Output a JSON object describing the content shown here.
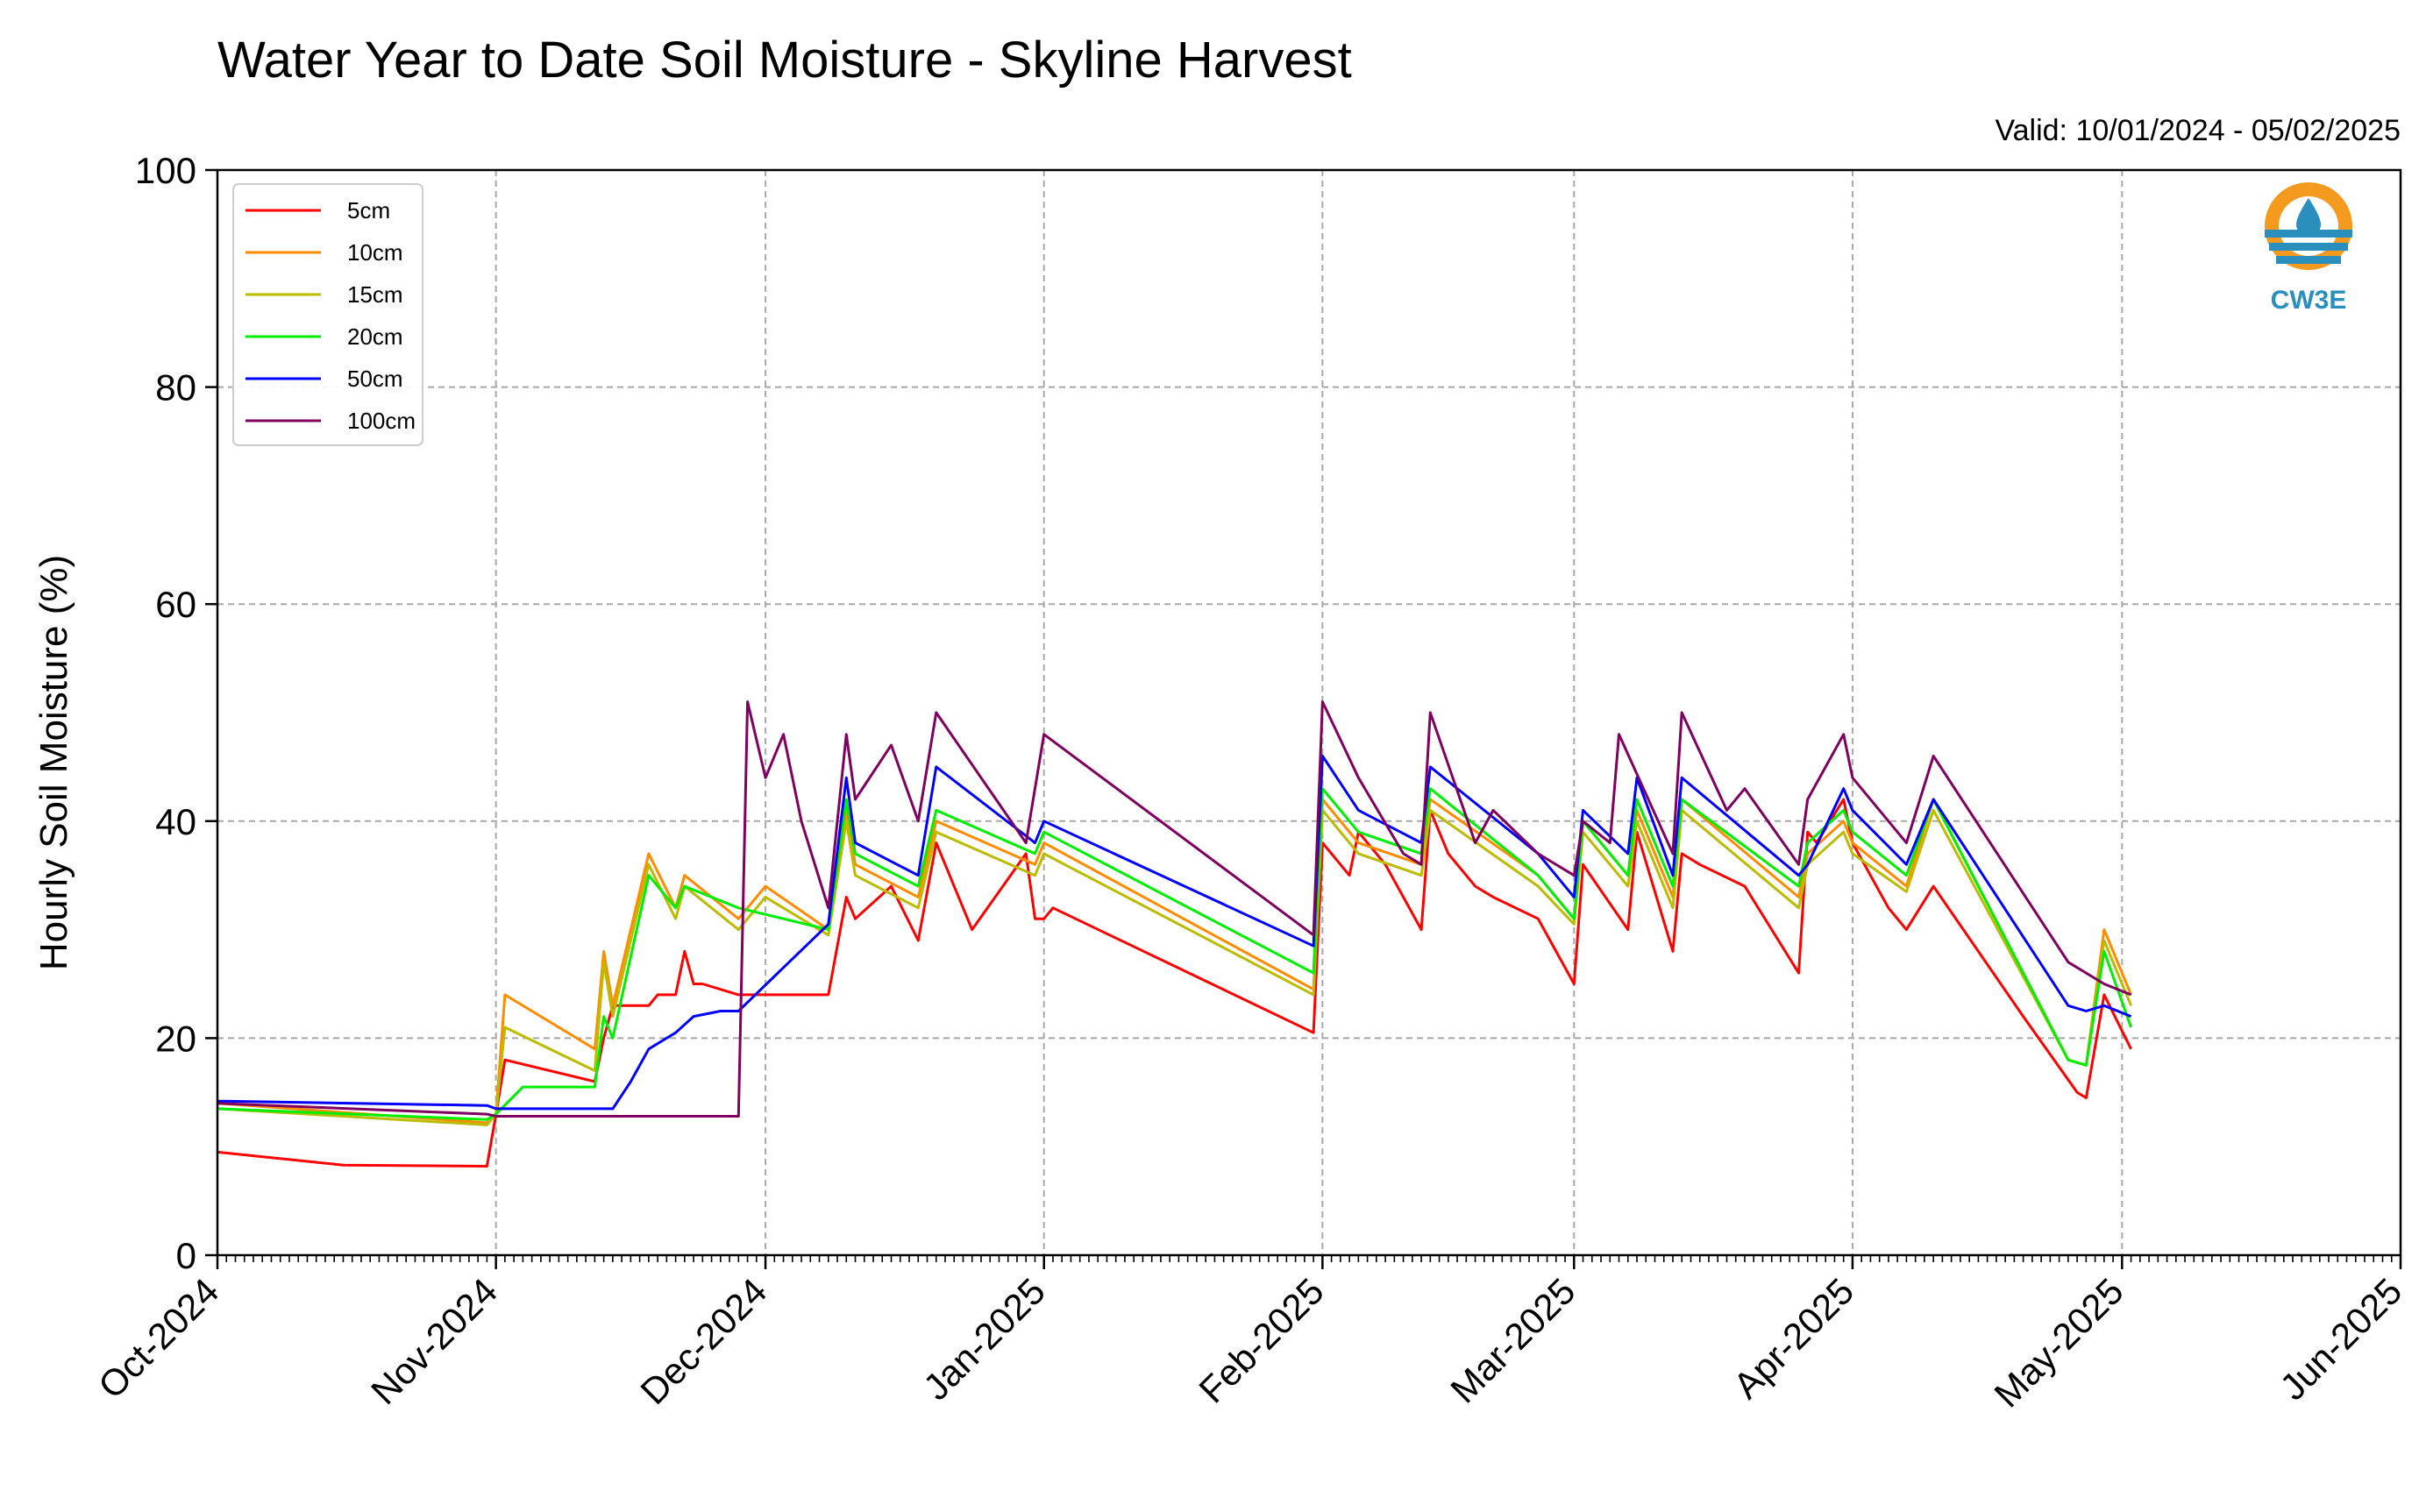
{
  "chart_data": {
    "type": "line",
    "title": "Water Year to Date Soil Moisture - Skyline Harvest",
    "subtitle": "Valid: 10/01/2024 - 05/02/2025",
    "xlabel": "",
    "ylabel": "Hourly Soil Moisture (%)",
    "xlim": [
      "2024-10-01",
      "2025-06-01"
    ],
    "ylim": [
      0,
      100
    ],
    "yticks": [
      0,
      20,
      40,
      60,
      80,
      100
    ],
    "ytick_labels": [
      "0",
      "20",
      "40",
      "60",
      "80",
      "100"
    ],
    "xtick_labels": [
      "Oct-2024",
      "Nov-2024",
      "Dec-2024",
      "Jan-2025",
      "Feb-2025",
      "Mar-2025",
      "Apr-2025",
      "May-2025",
      "Jun-2025"
    ],
    "xtick_dates": [
      "2024-10-01",
      "2024-11-01",
      "2024-12-01",
      "2025-01-01",
      "2025-02-01",
      "2025-03-01",
      "2025-04-01",
      "2025-05-01",
      "2025-06-01"
    ],
    "grid": true,
    "legend_position": "top-left",
    "logo_text": "CW3E",
    "logo_colors": {
      "sun": "#f39a1f",
      "water": "#2a8fbd"
    },
    "series": [
      {
        "name": "5cm",
        "color": "#ff0000",
        "x": [
          "2024-10-01",
          "2024-10-15",
          "2024-10-31",
          "2024-11-01",
          "2024-11-02",
          "2024-11-12",
          "2024-11-13",
          "2024-11-14",
          "2024-11-18",
          "2024-11-19",
          "2024-11-21",
          "2024-11-22",
          "2024-11-23",
          "2024-11-24",
          "2024-11-28",
          "2024-12-08",
          "2024-12-10",
          "2024-12-11",
          "2024-12-15",
          "2024-12-18",
          "2024-12-20",
          "2024-12-24",
          "2024-12-30",
          "2024-12-31",
          "2025-01-01",
          "2025-01-02",
          "2025-01-31",
          "2025-02-01",
          "2025-02-04",
          "2025-02-05",
          "2025-02-08",
          "2025-02-12",
          "2025-02-13",
          "2025-02-15",
          "2025-02-18",
          "2025-02-20",
          "2025-02-25",
          "2025-03-01",
          "2025-03-02",
          "2025-03-07",
          "2025-03-08",
          "2025-03-12",
          "2025-03-13",
          "2025-03-15",
          "2025-03-20",
          "2025-03-26",
          "2025-03-27",
          "2025-03-28",
          "2025-03-31",
          "2025-04-01",
          "2025-04-05",
          "2025-04-07",
          "2025-04-10",
          "2025-04-20",
          "2025-04-26",
          "2025-04-27",
          "2025-04-29",
          "2025-05-02"
        ],
        "y": [
          9.5,
          8.3,
          8.2,
          13,
          18,
          16,
          20,
          23,
          23,
          24,
          24,
          28,
          25,
          25,
          24,
          24,
          33,
          31,
          34,
          29,
          38,
          30,
          37,
          31,
          31,
          32,
          20.5,
          38,
          35,
          39,
          36,
          30,
          41,
          37,
          34,
          33,
          31,
          25,
          36,
          30,
          39,
          28,
          37,
          36,
          34,
          26,
          39,
          38,
          42,
          38,
          32,
          30,
          34,
          22,
          15,
          14.5,
          24,
          19
        ]
      },
      {
        "name": "10cm",
        "color": "#ff8c00",
        "x": [
          "2024-10-01",
          "2024-10-31",
          "2024-11-01",
          "2024-11-02",
          "2024-11-12",
          "2024-11-13",
          "2024-11-14",
          "2024-11-18",
          "2024-11-21",
          "2024-11-22",
          "2024-11-28",
          "2024-12-01",
          "2024-12-08",
          "2024-12-10",
          "2024-12-11",
          "2024-12-18",
          "2024-12-20",
          "2024-12-31",
          "2025-01-01",
          "2025-01-31",
          "2025-02-01",
          "2025-02-05",
          "2025-02-12",
          "2025-02-13",
          "2025-02-25",
          "2025-03-01",
          "2025-03-02",
          "2025-03-07",
          "2025-03-08",
          "2025-03-12",
          "2025-03-13",
          "2025-03-26",
          "2025-03-27",
          "2025-03-31",
          "2025-04-01",
          "2025-04-07",
          "2025-04-10",
          "2025-04-25",
          "2025-04-27",
          "2025-04-29",
          "2025-05-02"
        ],
        "y": [
          14,
          12.2,
          13,
          24,
          19,
          28,
          23,
          37,
          32,
          35,
          31,
          34,
          30,
          41,
          36,
          33,
          40,
          36,
          38,
          24.5,
          42,
          38,
          36,
          42,
          35,
          31,
          40,
          35,
          41,
          33,
          42,
          33,
          37,
          40,
          38,
          34,
          42,
          18,
          17.5,
          30,
          24
        ]
      },
      {
        "name": "15cm",
        "color": "#bbbb00",
        "x": [
          "2024-10-01",
          "2024-10-31",
          "2024-11-01",
          "2024-11-02",
          "2024-11-12",
          "2024-11-13",
          "2024-11-14",
          "2024-11-18",
          "2024-11-21",
          "2024-11-22",
          "2024-11-28",
          "2024-12-01",
          "2024-12-08",
          "2024-12-10",
          "2024-12-11",
          "2024-12-18",
          "2024-12-20",
          "2024-12-31",
          "2025-01-01",
          "2025-01-31",
          "2025-02-01",
          "2025-02-05",
          "2025-02-12",
          "2025-02-13",
          "2025-02-25",
          "2025-03-01",
          "2025-03-02",
          "2025-03-07",
          "2025-03-08",
          "2025-03-12",
          "2025-03-13",
          "2025-03-26",
          "2025-03-27",
          "2025-03-31",
          "2025-04-01",
          "2025-04-07",
          "2025-04-10",
          "2025-04-25",
          "2025-04-27",
          "2025-04-29",
          "2025-05-02"
        ],
        "y": [
          13.5,
          12,
          13,
          21,
          17,
          27,
          22,
          36,
          31,
          34,
          30,
          33,
          29.5,
          40,
          35,
          32,
          39,
          35,
          37,
          24,
          41,
          37,
          35,
          41,
          34,
          30.5,
          39,
          34,
          40,
          32,
          41,
          32,
          36,
          39,
          37,
          33.5,
          41,
          18,
          17.5,
          29,
          23
        ]
      },
      {
        "name": "20cm",
        "color": "#00ee00",
        "x": [
          "2024-10-01",
          "2024-10-31",
          "2024-11-01",
          "2024-11-04",
          "2024-11-12",
          "2024-11-13",
          "2024-11-14",
          "2024-11-18",
          "2024-11-21",
          "2024-11-22",
          "2024-11-28",
          "2024-12-08",
          "2024-12-10",
          "2024-12-11",
          "2024-12-18",
          "2024-12-20",
          "2024-12-31",
          "2025-01-01",
          "2025-01-31",
          "2025-02-01",
          "2025-02-05",
          "2025-02-12",
          "2025-02-13",
          "2025-02-25",
          "2025-03-01",
          "2025-03-02",
          "2025-03-07",
          "2025-03-08",
          "2025-03-12",
          "2025-03-13",
          "2025-03-26",
          "2025-03-27",
          "2025-03-31",
          "2025-04-01",
          "2025-04-07",
          "2025-04-10",
          "2025-04-25",
          "2025-04-27",
          "2025-04-29",
          "2025-05-02"
        ],
        "y": [
          13.5,
          12.5,
          13,
          15.5,
          15.5,
          22,
          20,
          35,
          32,
          34,
          32,
          30,
          42,
          37,
          34,
          41,
          37,
          39,
          26,
          43,
          39,
          37,
          43,
          35,
          31,
          40,
          35,
          42,
          34,
          42,
          34,
          38,
          41,
          39,
          35,
          42,
          18,
          17.5,
          28,
          21
        ]
      },
      {
        "name": "50cm",
        "color": "#0000ff",
        "x": [
          "2024-10-01",
          "2024-10-31",
          "2024-11-01",
          "2024-11-14",
          "2024-11-16",
          "2024-11-18",
          "2024-11-20",
          "2024-11-21",
          "2024-11-23",
          "2024-11-26",
          "2024-11-28",
          "2024-12-08",
          "2024-12-10",
          "2024-12-11",
          "2024-12-18",
          "2024-12-20",
          "2024-12-31",
          "2025-01-01",
          "2025-01-31",
          "2025-02-01",
          "2025-02-05",
          "2025-02-12",
          "2025-02-13",
          "2025-02-25",
          "2025-03-01",
          "2025-03-02",
          "2025-03-07",
          "2025-03-08",
          "2025-03-12",
          "2025-03-13",
          "2025-03-26",
          "2025-03-27",
          "2025-03-31",
          "2025-04-01",
          "2025-04-07",
          "2025-04-10",
          "2025-04-25",
          "2025-04-27",
          "2025-04-29",
          "2025-05-02"
        ],
        "y": [
          14.2,
          13.8,
          13.5,
          13.5,
          16,
          19,
          20,
          20.5,
          22,
          22.5,
          22.5,
          30.5,
          44,
          38,
          35,
          45,
          38,
          40,
          28.5,
          46,
          41,
          38,
          45,
          37,
          33,
          41,
          37,
          44,
          35,
          44,
          35,
          36,
          43,
          41,
          36,
          42,
          23,
          22.5,
          23,
          22
        ]
      },
      {
        "name": "100cm",
        "color": "#800060",
        "x": [
          "2024-10-01",
          "2024-10-31",
          "2024-11-01",
          "2024-11-28",
          "2024-11-29",
          "2024-12-01",
          "2024-12-03",
          "2024-12-05",
          "2024-12-08",
          "2024-12-10",
          "2024-12-11",
          "2024-12-15",
          "2024-12-18",
          "2024-12-20",
          "2024-12-30",
          "2025-01-01",
          "2025-01-31",
          "2025-02-01",
          "2025-02-05",
          "2025-02-10",
          "2025-02-12",
          "2025-02-13",
          "2025-02-18",
          "2025-02-20",
          "2025-02-25",
          "2025-03-01",
          "2025-03-02",
          "2025-03-05",
          "2025-03-06",
          "2025-03-12",
          "2025-03-13",
          "2025-03-18",
          "2025-03-20",
          "2025-03-26",
          "2025-03-27",
          "2025-03-31",
          "2025-04-01",
          "2025-04-07",
          "2025-04-10",
          "2025-04-25",
          "2025-04-27",
          "2025-04-29",
          "2025-05-02"
        ],
        "y": [
          14,
          13,
          12.8,
          12.8,
          51,
          44,
          48,
          40,
          32,
          48,
          42,
          47,
          40,
          50,
          38,
          48,
          29.5,
          51,
          44,
          37,
          36,
          50,
          38,
          41,
          37,
          35,
          40,
          38,
          48,
          37,
          50,
          41,
          43,
          36,
          42,
          48,
          44,
          38,
          46,
          27,
          26,
          25,
          24
        ]
      }
    ]
  }
}
